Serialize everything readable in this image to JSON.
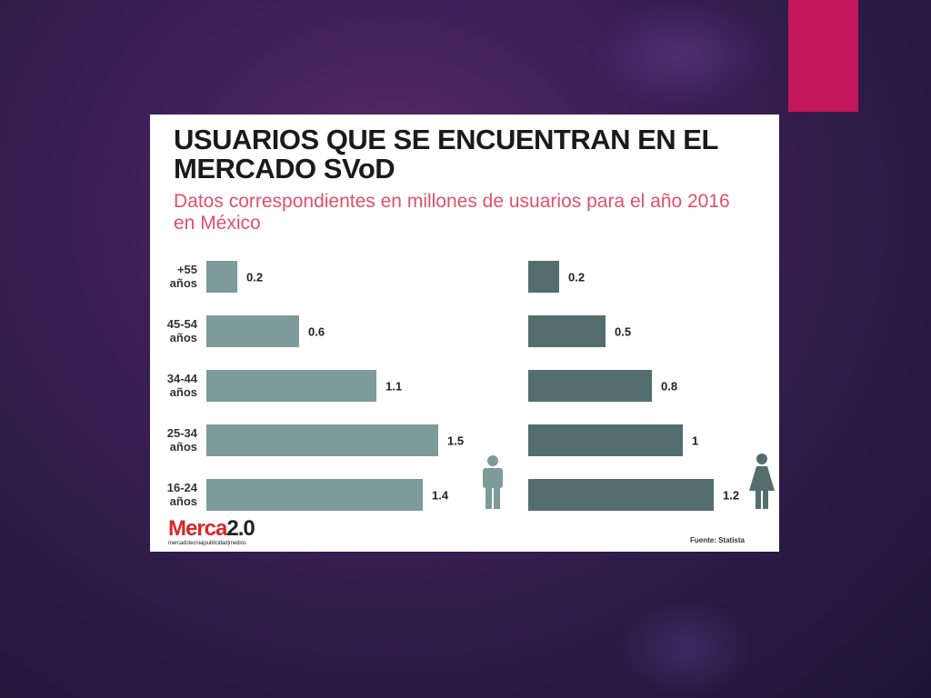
{
  "colors": {
    "male_bar": "#7d9b9a",
    "female_bar": "#546e6d",
    "accent": "#c2185b",
    "brand_red": "#d92525"
  },
  "logo": {
    "main": "Merca",
    "version": "2.0",
    "tagline": "mercadotecnia|publicidad|medios"
  },
  "source": "Fuente: Statista",
  "chart_data": {
    "type": "bar",
    "orientation": "horizontal",
    "title": "USUARIOS QUE SE ENCUENTRAN EN EL MERCADO SVoD",
    "subtitle": "Datos correspondientes en millones de usuarios para el año 2016 en México",
    "categories": [
      [
        "+55",
        "años"
      ],
      [
        "45-54",
        "años"
      ],
      [
        "34-44",
        "años"
      ],
      [
        "25-34",
        "años"
      ],
      [
        "16-24",
        "años"
      ]
    ],
    "series": [
      {
        "values": [
          0.2,
          0.6,
          1.1,
          1.5,
          1.4
        ],
        "labels": [
          "0.2",
          "0.6",
          "1.1",
          "1.5",
          "1.4"
        ],
        "icon": "male-icon"
      },
      {
        "values": [
          0.2,
          0.5,
          0.8,
          1,
          1.2
        ],
        "labels": [
          "0.2",
          "0.5",
          "0.8",
          "1",
          "1.2"
        ],
        "icon": "female-icon"
      }
    ],
    "xlim": [
      0,
      1.5
    ],
    "grid": false,
    "legend": "none"
  }
}
